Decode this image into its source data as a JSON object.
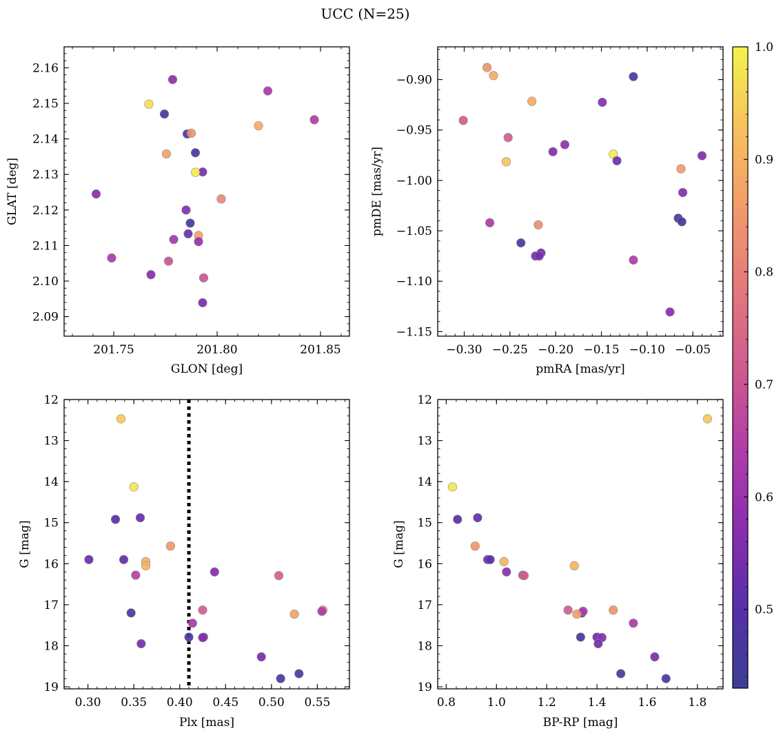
{
  "figure": {
    "title": "UCC (N=25)"
  },
  "colorbar": {
    "min": 0.43,
    "max": 1.0,
    "ticks": [
      0.5,
      0.6,
      0.7,
      0.8,
      0.9,
      1.0
    ],
    "tick_labels": [
      "0.5",
      "0.6",
      "0.7",
      "0.8",
      "0.9",
      "1.0"
    ],
    "colormap": "plasma"
  },
  "chart_data": [
    {
      "type": "scatter",
      "id": "glon-glat",
      "xlabel": "GLON [deg]",
      "ylabel": "GLAT [deg]",
      "xlim": [
        201.726,
        201.864
      ],
      "ylim": [
        2.0845,
        2.1659
      ],
      "y_inverted": false,
      "xticks": [
        201.75,
        201.8,
        201.85
      ],
      "xtick_labels": [
        "201.75",
        "201.80",
        "201.85"
      ],
      "yticks": [
        2.09,
        2.1,
        2.11,
        2.12,
        2.13,
        2.14,
        2.15,
        2.16
      ],
      "ytick_labels": [
        "2.09",
        "2.10",
        "2.11",
        "2.12",
        "2.13",
        "2.14",
        "2.15",
        "2.16"
      ],
      "points": [
        {
          "x": 201.7785,
          "y": 2.1567,
          "c": 0.58
        },
        {
          "x": 201.8245,
          "y": 2.1535,
          "c": 0.63
        },
        {
          "x": 201.767,
          "y": 2.1498,
          "c": 0.97
        },
        {
          "x": 201.7745,
          "y": 2.147,
          "c": 0.45
        },
        {
          "x": 201.847,
          "y": 2.1454,
          "c": 0.64
        },
        {
          "x": 201.82,
          "y": 2.1437,
          "c": 0.89
        },
        {
          "x": 201.7855,
          "y": 2.1414,
          "c": 0.47
        },
        {
          "x": 201.7875,
          "y": 2.1416,
          "c": 0.84
        },
        {
          "x": 201.7755,
          "y": 2.1358,
          "c": 0.87
        },
        {
          "x": 201.7895,
          "y": 2.1361,
          "c": 0.47
        },
        {
          "x": 201.793,
          "y": 2.1307,
          "c": 0.55
        },
        {
          "x": 201.7895,
          "y": 2.1306,
          "c": 0.99
        },
        {
          "x": 201.7415,
          "y": 2.1245,
          "c": 0.57
        },
        {
          "x": 201.802,
          "y": 2.1231,
          "c": 0.82
        },
        {
          "x": 201.785,
          "y": 2.12,
          "c": 0.56
        },
        {
          "x": 201.787,
          "y": 2.1163,
          "c": 0.46
        },
        {
          "x": 201.786,
          "y": 2.1133,
          "c": 0.53
        },
        {
          "x": 201.791,
          "y": 2.1128,
          "c": 0.87
        },
        {
          "x": 201.779,
          "y": 2.1117,
          "c": 0.62
        },
        {
          "x": 201.791,
          "y": 2.1111,
          "c": 0.59
        },
        {
          "x": 201.749,
          "y": 2.1065,
          "c": 0.63
        },
        {
          "x": 201.7765,
          "y": 2.1056,
          "c": 0.7
        },
        {
          "x": 201.768,
          "y": 2.1018,
          "c": 0.57
        },
        {
          "x": 201.7935,
          "y": 2.1009,
          "c": 0.7
        },
        {
          "x": 201.793,
          "y": 2.0939,
          "c": 0.55
        }
      ]
    },
    {
      "type": "scatter",
      "id": "pmra-pmde",
      "xlabel": "pmRA [mas/yr]",
      "ylabel": "pmDE [mas/yr]",
      "xlim": [
        -0.329,
        -0.017
      ],
      "ylim": [
        -1.1545,
        -0.8675
      ],
      "y_inverted": false,
      "xticks": [
        -0.3,
        -0.25,
        -0.2,
        -0.15,
        -0.1,
        -0.05
      ],
      "xtick_labels": [
        "−0.30",
        "−0.25",
        "−0.20",
        "−0.15",
        "−0.10",
        "−0.05"
      ],
      "yticks": [
        -0.9,
        -0.95,
        -1.0,
        -1.05,
        -1.1,
        -1.15
      ],
      "ytick_labels": [
        "−0.90",
        "−0.95",
        "−1.00",
        "−1.05",
        "−1.10",
        "−1.15"
      ],
      "points": [
        {
          "x": -0.275,
          "y": -0.888,
          "c": 0.84
        },
        {
          "x": -0.268,
          "y": -0.896,
          "c": 0.89
        },
        {
          "x": -0.115,
          "y": -0.897,
          "c": 0.46
        },
        {
          "x": -0.226,
          "y": -0.9215,
          "c": 0.89
        },
        {
          "x": -0.149,
          "y": -0.9225,
          "c": 0.56
        },
        {
          "x": -0.301,
          "y": -0.9405,
          "c": 0.72
        },
        {
          "x": -0.252,
          "y": -0.9575,
          "c": 0.72
        },
        {
          "x": -0.19,
          "y": -0.9645,
          "c": 0.58
        },
        {
          "x": -0.203,
          "y": -0.9715,
          "c": 0.57
        },
        {
          "x": -0.137,
          "y": -0.974,
          "c": 0.99
        },
        {
          "x": -0.04,
          "y": -0.9755,
          "c": 0.56
        },
        {
          "x": -0.133,
          "y": -0.9805,
          "c": 0.53
        },
        {
          "x": -0.254,
          "y": -0.9815,
          "c": 0.93
        },
        {
          "x": -0.063,
          "y": -0.9885,
          "c": 0.86
        },
        {
          "x": -0.061,
          "y": -1.012,
          "c": 0.56
        },
        {
          "x": -0.066,
          "y": -1.0375,
          "c": 0.45
        },
        {
          "x": -0.062,
          "y": -1.041,
          "c": 0.46
        },
        {
          "x": -0.272,
          "y": -1.042,
          "c": 0.63
        },
        {
          "x": -0.219,
          "y": -1.044,
          "c": 0.83
        },
        {
          "x": -0.238,
          "y": -1.062,
          "c": 0.46
        },
        {
          "x": -0.216,
          "y": -1.072,
          "c": 0.54
        },
        {
          "x": -0.222,
          "y": -1.075,
          "c": 0.54
        },
        {
          "x": -0.218,
          "y": -1.075,
          "c": 0.55
        },
        {
          "x": -0.115,
          "y": -1.079,
          "c": 0.64
        },
        {
          "x": -0.075,
          "y": -1.1305,
          "c": 0.57
        }
      ]
    },
    {
      "type": "scatter",
      "id": "plx-g",
      "xlabel": "Plx [mas]",
      "ylabel": "G [mag]",
      "xlim": [
        0.274,
        0.585
      ],
      "ylim": [
        12.0,
        19.05
      ],
      "y_inverted": true,
      "xticks": [
        0.3,
        0.35,
        0.4,
        0.45,
        0.5,
        0.55
      ],
      "xtick_labels": [
        "0.30",
        "0.35",
        "0.40",
        "0.45",
        "0.50",
        "0.55"
      ],
      "yticks": [
        12,
        13,
        14,
        15,
        16,
        17,
        18,
        19
      ],
      "ytick_labels": [
        "12",
        "13",
        "14",
        "15",
        "16",
        "17",
        "18",
        "19"
      ],
      "vline": {
        "x": 0.41,
        "style": "dotted"
      },
      "points": [
        {
          "x": 0.336,
          "y": 12.47,
          "c": 0.94
        },
        {
          "x": 0.35,
          "y": 14.13,
          "c": 0.98
        },
        {
          "x": 0.33,
          "y": 14.92,
          "c": 0.5
        },
        {
          "x": 0.357,
          "y": 14.88,
          "c": 0.52
        },
        {
          "x": 0.39,
          "y": 15.57,
          "c": 0.85
        },
        {
          "x": 0.301,
          "y": 15.9,
          "c": 0.52
        },
        {
          "x": 0.339,
          "y": 15.9,
          "c": 0.51
        },
        {
          "x": 0.363,
          "y": 15.95,
          "c": 0.9
        },
        {
          "x": 0.363,
          "y": 16.05,
          "c": 0.9
        },
        {
          "x": 0.352,
          "y": 16.28,
          "c": 0.65
        },
        {
          "x": 0.438,
          "y": 16.2,
          "c": 0.57
        },
        {
          "x": 0.508,
          "y": 16.29,
          "c": 0.73
        },
        {
          "x": 0.425,
          "y": 17.13,
          "c": 0.72
        },
        {
          "x": 0.347,
          "y": 17.2,
          "c": 0.46
        },
        {
          "x": 0.525,
          "y": 17.23,
          "c": 0.87
        },
        {
          "x": 0.556,
          "y": 17.13,
          "c": 0.84
        },
        {
          "x": 0.555,
          "y": 17.16,
          "c": 0.64
        },
        {
          "x": 0.414,
          "y": 17.45,
          "c": 0.63
        },
        {
          "x": 0.41,
          "y": 17.79,
          "c": 0.47
        },
        {
          "x": 0.426,
          "y": 17.79,
          "c": 0.52
        },
        {
          "x": 0.425,
          "y": 17.8,
          "c": 0.57
        },
        {
          "x": 0.358,
          "y": 17.95,
          "c": 0.54
        },
        {
          "x": 0.489,
          "y": 18.27,
          "c": 0.55
        },
        {
          "x": 0.53,
          "y": 18.68,
          "c": 0.46
        },
        {
          "x": 0.51,
          "y": 18.8,
          "c": 0.47
        }
      ]
    },
    {
      "type": "scatter",
      "id": "bprp-g",
      "xlabel": "BP-RP [mag]",
      "ylabel": "G [mag]",
      "xlim": [
        0.766,
        1.902
      ],
      "ylim": [
        12.0,
        19.05
      ],
      "y_inverted": true,
      "xticks": [
        0.8,
        1.0,
        1.2,
        1.4,
        1.6,
        1.8
      ],
      "xtick_labels": [
        "0.8",
        "1.0",
        "1.2",
        "1.4",
        "1.6",
        "1.8"
      ],
      "yticks": [
        12,
        13,
        14,
        15,
        16,
        17,
        18,
        19
      ],
      "ytick_labels": [
        "12",
        "13",
        "14",
        "15",
        "16",
        "17",
        "18",
        "19"
      ],
      "points": [
        {
          "x": 1.84,
          "y": 12.47,
          "c": 0.94
        },
        {
          "x": 0.825,
          "y": 14.13,
          "c": 0.98
        },
        {
          "x": 0.845,
          "y": 14.92,
          "c": 0.5
        },
        {
          "x": 0.925,
          "y": 14.88,
          "c": 0.52
        },
        {
          "x": 0.915,
          "y": 15.57,
          "c": 0.85
        },
        {
          "x": 0.965,
          "y": 15.9,
          "c": 0.52
        },
        {
          "x": 0.975,
          "y": 15.9,
          "c": 0.51
        },
        {
          "x": 1.03,
          "y": 15.95,
          "c": 0.9
        },
        {
          "x": 1.31,
          "y": 16.05,
          "c": 0.9
        },
        {
          "x": 1.04,
          "y": 16.2,
          "c": 0.57
        },
        {
          "x": 1.105,
          "y": 16.28,
          "c": 0.65
        },
        {
          "x": 1.11,
          "y": 16.29,
          "c": 0.73
        },
        {
          "x": 1.285,
          "y": 17.13,
          "c": 0.72
        },
        {
          "x": 1.34,
          "y": 17.2,
          "c": 0.46
        },
        {
          "x": 1.345,
          "y": 17.16,
          "c": 0.64
        },
        {
          "x": 1.32,
          "y": 17.23,
          "c": 0.87
        },
        {
          "x": 1.465,
          "y": 17.13,
          "c": 0.84
        },
        {
          "x": 1.545,
          "y": 17.45,
          "c": 0.63
        },
        {
          "x": 1.335,
          "y": 17.79,
          "c": 0.47
        },
        {
          "x": 1.4,
          "y": 17.79,
          "c": 0.52
        },
        {
          "x": 1.42,
          "y": 17.8,
          "c": 0.57
        },
        {
          "x": 1.405,
          "y": 17.95,
          "c": 0.54
        },
        {
          "x": 1.63,
          "y": 18.27,
          "c": 0.55
        },
        {
          "x": 1.495,
          "y": 18.68,
          "c": 0.46
        },
        {
          "x": 1.675,
          "y": 18.8,
          "c": 0.47
        }
      ]
    }
  ]
}
